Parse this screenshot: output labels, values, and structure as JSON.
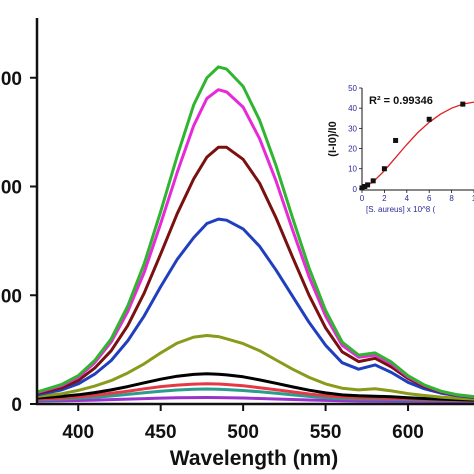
{
  "chart_data": [
    {
      "type": "line",
      "xlabel": "Wavelength (nm)",
      "ylabel": "",
      "xlim": [
        375,
        640
      ],
      "ylim": [
        0,
        3200
      ],
      "x_ticks": [
        400,
        450,
        500,
        550,
        600
      ],
      "x_tick_labels": [
        "400",
        "450",
        "500",
        "550",
        "600"
      ],
      "y_ticks": [
        0,
        1000,
        2000,
        3000
      ],
      "y_tick_labels": [
        "0",
        "00",
        "00",
        "00"
      ],
      "x": [
        375,
        390,
        400,
        410,
        420,
        430,
        440,
        450,
        460,
        470,
        478,
        485,
        490,
        500,
        510,
        520,
        530,
        540,
        550,
        560,
        570,
        580,
        590,
        600,
        610,
        620,
        630,
        640
      ],
      "series": [
        {
          "color": "#9933cc",
          "values": [
            28,
            30,
            32,
            36,
            40,
            45,
            50,
            54,
            57,
            59,
            60,
            59,
            58,
            55,
            51,
            46,
            41,
            37,
            33,
            30,
            28,
            27,
            26,
            25,
            24,
            23,
            22,
            21
          ]
        },
        {
          "color": "#2a9d8f",
          "values": [
            38,
            45,
            52,
            62,
            74,
            88,
            104,
            118,
            129,
            136,
            138,
            136,
            132,
            124,
            112,
            98,
            84,
            70,
            58,
            50,
            46,
            45,
            43,
            40,
            37,
            34,
            31,
            29
          ]
        },
        {
          "color": "#e63946",
          "values": [
            45,
            55,
            65,
            80,
            98,
            118,
            140,
            160,
            174,
            183,
            186,
            184,
            179,
            167,
            150,
            131,
            111,
            92,
            76,
            64,
            58,
            57,
            53,
            48,
            44,
            40,
            36,
            33
          ]
        },
        {
          "color": "#000000",
          "values": [
            55,
            70,
            85,
            105,
            130,
            160,
            195,
            228,
            256,
            272,
            278,
            274,
            268,
            250,
            222,
            190,
            157,
            127,
            102,
            84,
            75,
            72,
            66,
            58,
            51,
            45,
            40,
            36
          ]
        },
        {
          "color": "#8a9a1a",
          "values": [
            70,
            95,
            125,
            165,
            215,
            285,
            370,
            470,
            560,
            615,
            630,
            620,
            600,
            555,
            490,
            405,
            320,
            245,
            185,
            145,
            130,
            140,
            120,
            96,
            78,
            63,
            52,
            45
          ]
        },
        {
          "color": "#1f3fbf",
          "values": [
            85,
            130,
            185,
            275,
            400,
            580,
            810,
            1080,
            1330,
            1530,
            1660,
            1700,
            1690,
            1610,
            1450,
            1230,
            990,
            750,
            540,
            380,
            320,
            360,
            290,
            200,
            140,
            100,
            75,
            60
          ]
        },
        {
          "color": "#7a1010",
          "values": [
            95,
            150,
            215,
            330,
            490,
            720,
            1020,
            1380,
            1750,
            2070,
            2270,
            2360,
            2360,
            2250,
            2030,
            1710,
            1350,
            1000,
            700,
            480,
            390,
            420,
            340,
            235,
            160,
            110,
            80,
            64
          ]
        },
        {
          "color": "#e62ad9",
          "values": [
            105,
            170,
            245,
            380,
            570,
            850,
            1210,
            1660,
            2130,
            2560,
            2810,
            2890,
            2870,
            2730,
            2440,
            2050,
            1600,
            1170,
            810,
            540,
            430,
            450,
            370,
            250,
            170,
            115,
            83,
            66
          ]
        },
        {
          "color": "#2fb52f",
          "values": [
            110,
            180,
            260,
            400,
            600,
            900,
            1290,
            1770,
            2280,
            2750,
            3000,
            3100,
            3080,
            2920,
            2610,
            2190,
            1710,
            1250,
            860,
            570,
            450,
            470,
            385,
            260,
            175,
            118,
            85,
            68
          ]
        }
      ]
    },
    {
      "type": "scatter",
      "ylabel": "(I-I0)/I0",
      "xlabel": "[S. aureus] x 10^8 (",
      "annotation": "R² = 0.99346",
      "xlim": [
        0,
        10
      ],
      "ylim": [
        -5,
        50
      ],
      "x_tick_labels": [
        "0",
        "2",
        "4",
        "6",
        "8",
        "1"
      ],
      "y_tick_labels": [
        "0",
        "10",
        "20",
        "30",
        "40",
        "50"
      ],
      "x": [
        0.0,
        0.25,
        0.5,
        1.0,
        2.0,
        3.0,
        6.0,
        9.0
      ],
      "values": [
        0.5,
        1.2,
        2.0,
        4.0,
        10.0,
        24.0,
        34.5,
        42.0
      ],
      "fit_x": [
        0,
        1,
        2,
        3,
        4,
        5,
        6,
        7,
        8,
        9,
        10
      ],
      "fit_values": [
        0.3,
        3.5,
        9.0,
        15.5,
        22.0,
        28.0,
        33.0,
        37.0,
        40.0,
        42.0,
        43.0
      ]
    }
  ]
}
